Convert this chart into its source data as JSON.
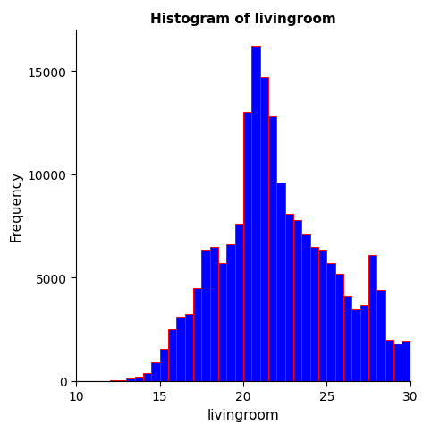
{
  "title": "Histogram of livingroom",
  "xlabel": "livingroom",
  "ylabel": "Frequency",
  "bar_color": "#0000FF",
  "edge_color": "#FF0000",
  "xlim": [
    10,
    30
  ],
  "ylim": [
    0,
    17000
  ],
  "yticks": [
    0,
    5000,
    10000,
    15000
  ],
  "xticks": [
    10,
    15,
    20,
    25,
    30
  ],
  "bins": 40,
  "bin_edges": [
    10.0,
    10.5,
    11.0,
    11.5,
    12.0,
    12.5,
    13.0,
    13.5,
    14.0,
    14.5,
    15.0,
    15.5,
    16.0,
    16.5,
    17.0,
    17.5,
    18.0,
    18.5,
    19.0,
    19.5,
    20.0,
    20.5,
    21.0,
    21.5,
    22.0,
    22.5,
    23.0,
    23.5,
    24.0,
    24.5,
    25.0,
    25.5,
    26.0,
    26.5,
    27.0,
    27.5,
    28.0,
    28.5,
    29.0,
    29.5,
    30.0
  ],
  "frequencies": [
    0,
    0,
    0,
    5,
    15,
    50,
    100,
    200,
    400,
    900,
    1550,
    2500,
    3100,
    3250,
    4500,
    6300,
    6500,
    5700,
    6600,
    7600,
    13000,
    16200,
    14700,
    12800,
    9600,
    8100,
    7800,
    7100,
    6500,
    6300,
    5700,
    5200,
    4100,
    3500,
    3650,
    6100,
    4400,
    2000,
    1800,
    1950
  ],
  "background_color": "#FFFFFF",
  "title_fontsize": 11,
  "axis_fontsize": 11,
  "tick_fontsize": 10,
  "figsize": [
    4.73,
    4.85
  ],
  "dpi": 100
}
